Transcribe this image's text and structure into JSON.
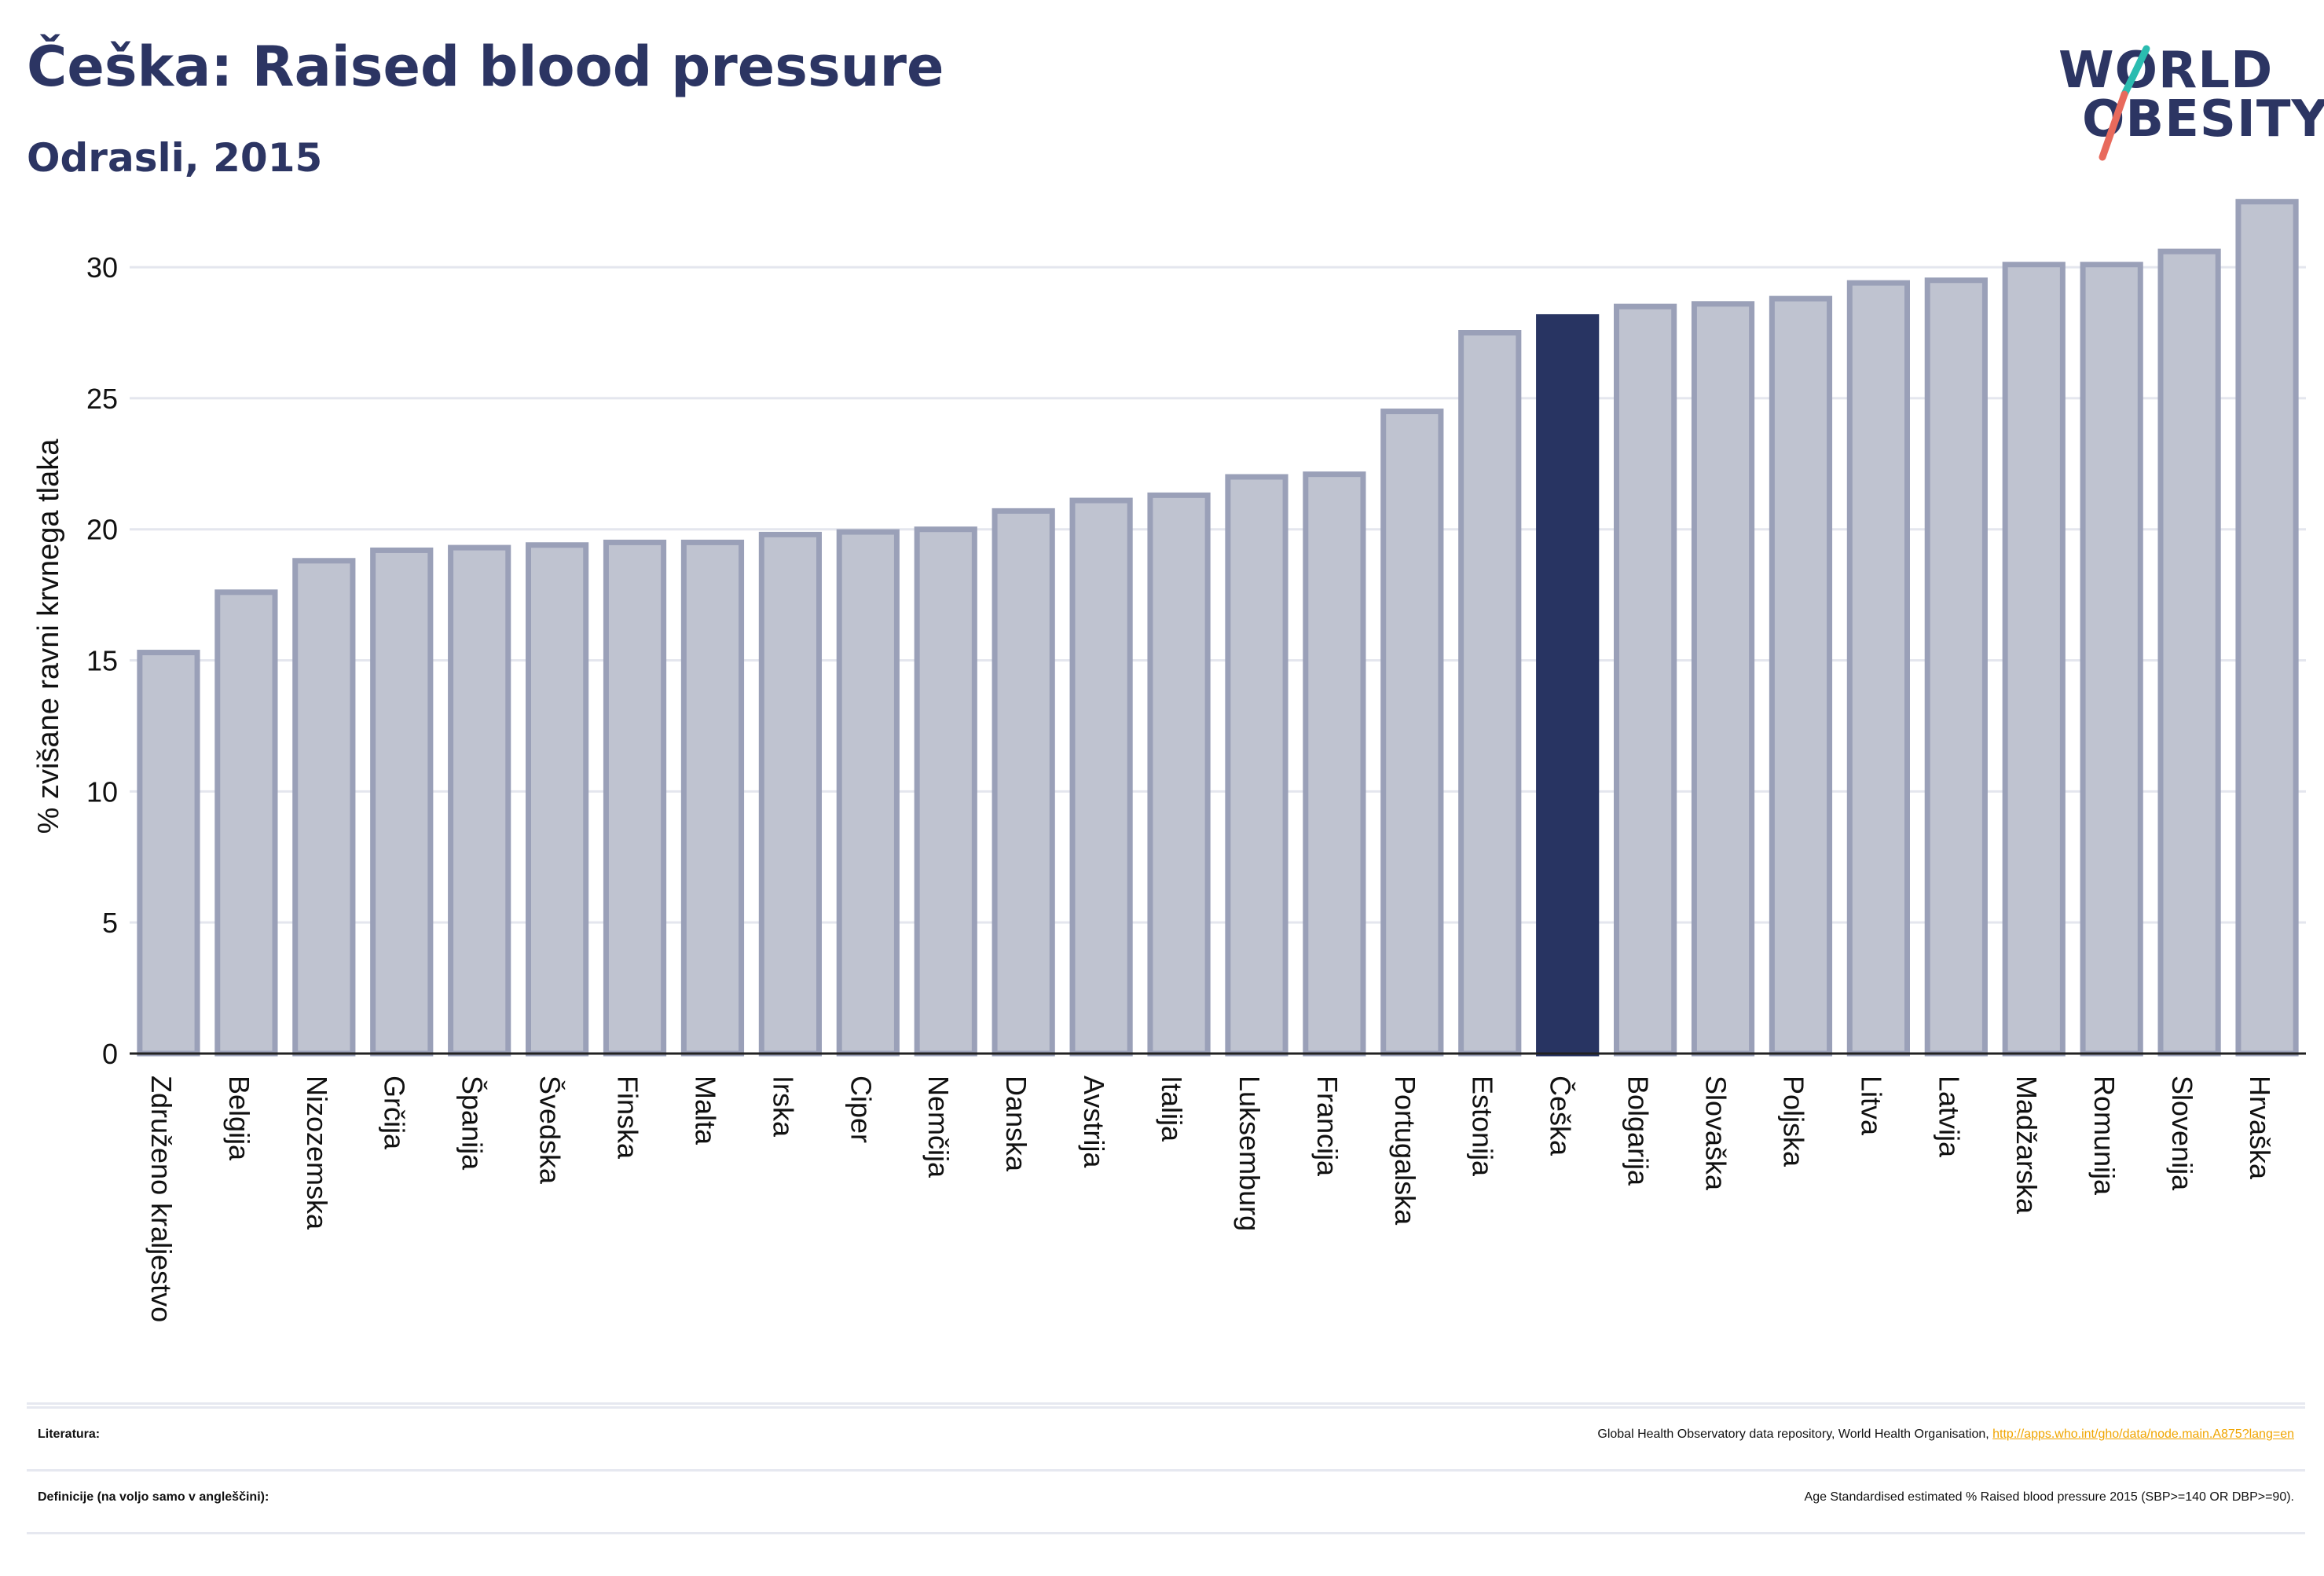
{
  "header": {
    "title": "Češka: Raised blood pressure",
    "subtitle": "Odrasli, 2015"
  },
  "logo": {
    "line1": "WORLD",
    "line2": "OBESITY"
  },
  "colors": {
    "highlight": "#283462",
    "bar_fill": "#bfc3d0",
    "bar_stroke": "#9aa0b8",
    "title": "#2c3563",
    "link": "#f0a500",
    "logo_slash_teal": "#2bbcb0",
    "logo_slash_red": "#e86a5c"
  },
  "chart_data": {
    "type": "bar",
    "ylabel": "% zvišane ravni krvnega tlaka",
    "ylim": [
      0,
      33
    ],
    "yticks": [
      0,
      5,
      10,
      15,
      20,
      25,
      30
    ],
    "grid": true,
    "highlight": "Češka",
    "categories": [
      "Združeno kraljestvo",
      "Belgija",
      "Nizozemska",
      "Grčija",
      "Španija",
      "Švedska",
      "Finska",
      "Malta",
      "Irska",
      "Ciper",
      "Nemčija",
      "Danska",
      "Avstrija",
      "Italija",
      "Luksemburg",
      "Francija",
      "Portugalska",
      "Estonija",
      "Češka",
      "Bolgarija",
      "Slovaška",
      "Poljska",
      "Litva",
      "Latvija",
      "Madžarska",
      "Romunija",
      "Slovenija",
      "Hrvaška"
    ],
    "values": [
      15.3,
      17.6,
      18.8,
      19.2,
      19.3,
      19.4,
      19.5,
      19.5,
      19.8,
      19.9,
      20.0,
      20.7,
      21.1,
      21.3,
      22.0,
      22.1,
      24.5,
      27.5,
      28.1,
      28.5,
      28.6,
      28.8,
      29.4,
      29.5,
      30.1,
      30.1,
      30.6,
      32.5
    ]
  },
  "sources": {
    "literature_label": "Literatura:",
    "literature_text": "Global Health Observatory data repository, World Health Organisation, ",
    "literature_link": "http://apps.who.int/gho/data/node.main.A875?lang=en",
    "definitions_label": "Definicije (na voljo samo v angleščini):",
    "definitions_text": "Age Standardised estimated % Raised blood pressure 2015 (SBP>=140 OR DBP>=90)."
  }
}
